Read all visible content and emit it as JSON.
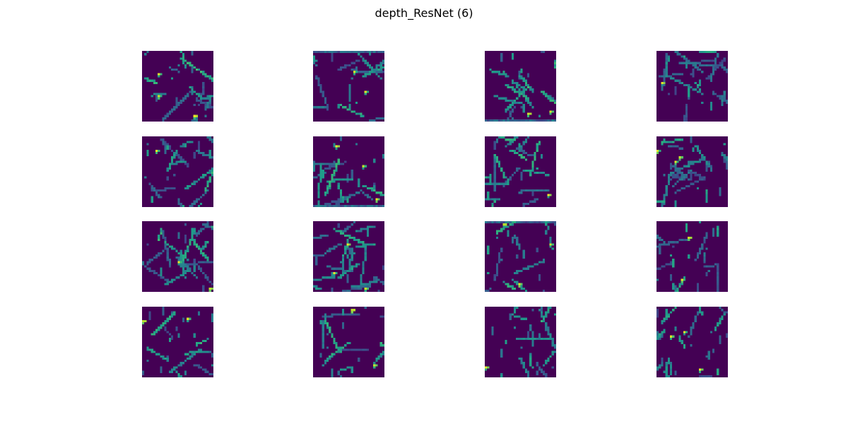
{
  "figure": {
    "title": "depth_ResNet (6)"
  },
  "grid": {
    "rows": 4,
    "cols": 4
  },
  "colormap": {
    "name": "viridis",
    "stops": [
      "#440154",
      "#482878",
      "#3e4989",
      "#31688e",
      "#26828e",
      "#1f9e89",
      "#35b779",
      "#6ece58",
      "#b5de2b",
      "#fde725"
    ],
    "background": "#440154"
  }
}
